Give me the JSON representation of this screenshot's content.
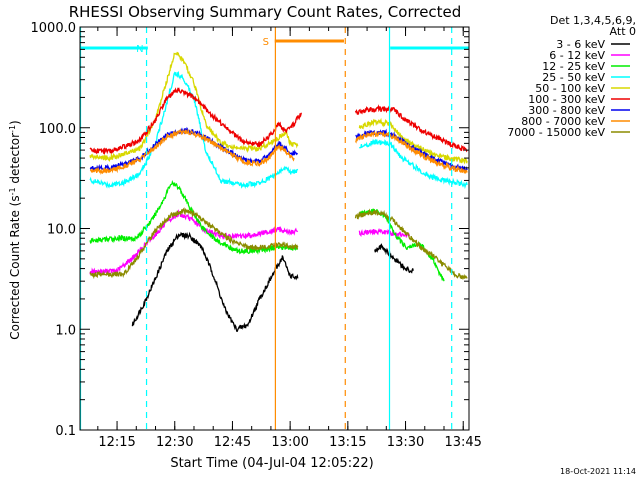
{
  "chart_data": {
    "type": "line",
    "title": "RHESSI Observing Summary Count Rates, Corrected",
    "xlabel": "Start Time (04-Jul-04 12:05:22)",
    "ylabel": "Corrected Count Rate (s⁻¹ detector⁻¹)",
    "ylabel_parts": {
      "base": "Corrected Count Rate (s",
      "exp1": "-1",
      "mid": " detector",
      "exp2": "-1",
      "end": ")"
    },
    "yscale": "log",
    "xlim": [
      "12:05:22",
      "13:46:30"
    ],
    "ylim": [
      0.1,
      1000
    ],
    "x_ticks": [
      "12:15",
      "12:30",
      "12:45",
      "13:00",
      "13:15",
      "13:30",
      "13:45"
    ],
    "y_ticks": [
      "0.1",
      "1.0",
      "10.0",
      "100.0",
      "1000.0"
    ],
    "legend": {
      "position": "right",
      "header": [
        "Det 1,3,4,5,6,9,",
        "Att 0"
      ]
    },
    "series": [
      {
        "name": "3 - 6 keV",
        "color": "#000000",
        "points": [
          [
            "12:19",
            1.1
          ],
          [
            "12:22",
            1.8
          ],
          [
            "12:25",
            3.2
          ],
          [
            "12:28",
            6.0
          ],
          [
            "12:31",
            8.7
          ],
          [
            "12:34",
            8.4
          ],
          [
            "12:37",
            6.5
          ],
          [
            "12:40",
            3.5
          ],
          [
            "12:43",
            1.6
          ],
          [
            "12:46",
            1.0
          ],
          [
            "12:49",
            1.1
          ],
          [
            "12:52",
            2.0
          ],
          [
            "12:55",
            3.2
          ],
          [
            "12:58",
            5.2
          ],
          [
            "13:00",
            3.4
          ],
          [
            "13:02",
            3.2
          ]
        ],
        "points_after": [
          [
            "13:22",
            6.0
          ],
          [
            "13:24",
            6.6
          ],
          [
            "13:27",
            5.0
          ],
          [
            "13:30",
            4.0
          ],
          [
            "13:32",
            3.8
          ]
        ]
      },
      {
        "name": "6 - 12 keV",
        "color": "#ff00ff",
        "points": [
          [
            "12:08",
            3.7
          ],
          [
            "12:15",
            3.8
          ],
          [
            "12:20",
            5.5
          ],
          [
            "12:24",
            8.0
          ],
          [
            "12:28",
            11.5
          ],
          [
            "12:31",
            14.0
          ],
          [
            "12:34",
            12.5
          ],
          [
            "12:38",
            9.6
          ],
          [
            "12:42",
            8.5
          ],
          [
            "12:46",
            8.3
          ],
          [
            "12:50",
            8.6
          ],
          [
            "12:54",
            9.2
          ],
          [
            "12:57",
            9.8
          ],
          [
            "13:00",
            9.2
          ],
          [
            "13:02",
            9.4
          ]
        ],
        "points_after": [
          [
            "13:18",
            9.0
          ],
          [
            "13:22",
            9.4
          ],
          [
            "13:26",
            9.0
          ],
          [
            "13:29",
            8.6
          ],
          [
            "13:31",
            8.4
          ]
        ]
      },
      {
        "name": "12 - 25 keV",
        "color": "#00ee00",
        "points": [
          [
            "12:08",
            7.5
          ],
          [
            "12:15",
            8.0
          ],
          [
            "12:20",
            8.0
          ],
          [
            "12:24",
            12.0
          ],
          [
            "12:27",
            19.0
          ],
          [
            "12:29",
            28.0
          ],
          [
            "12:31",
            26.0
          ],
          [
            "12:34",
            16.0
          ],
          [
            "12:37",
            10.5
          ],
          [
            "12:41",
            7.5
          ],
          [
            "12:46",
            6.0
          ],
          [
            "12:50",
            6.0
          ],
          [
            "12:54",
            6.2
          ],
          [
            "12:57",
            6.6
          ],
          [
            "13:00",
            6.5
          ],
          [
            "13:02",
            6.2
          ]
        ],
        "points_after": [
          [
            "13:18",
            14.0
          ],
          [
            "13:22",
            15.0
          ],
          [
            "13:25",
            13.0
          ],
          [
            "13:27",
            9.0
          ],
          [
            "13:30",
            6.5
          ],
          [
            "13:34",
            7.0
          ],
          [
            "13:37",
            5.0
          ],
          [
            "13:40",
            3.0
          ]
        ]
      },
      {
        "name": "25 - 50 keV",
        "color": "#00ffff",
        "points": [
          [
            "12:08",
            30.0
          ],
          [
            "12:13",
            27.0
          ],
          [
            "12:17",
            29.0
          ],
          [
            "12:21",
            35.0
          ],
          [
            "12:25",
            70.0
          ],
          [
            "12:28",
            180.0
          ],
          [
            "12:30",
            350.0
          ],
          [
            "12:32",
            320.0
          ],
          [
            "12:35",
            200.0
          ],
          [
            "12:38",
            60.0
          ],
          [
            "12:42",
            30.0
          ],
          [
            "12:47",
            27.0
          ],
          [
            "12:52",
            28.0
          ],
          [
            "12:56",
            34.0
          ],
          [
            "12:59",
            40.0
          ],
          [
            "13:00",
            36.0
          ],
          [
            "13:02",
            38.0
          ]
        ],
        "points_after": [
          [
            "13:18",
            65.0
          ],
          [
            "13:22",
            72.0
          ],
          [
            "13:26",
            70.0
          ],
          [
            "13:29",
            50.0
          ],
          [
            "13:32",
            42.0
          ],
          [
            "13:36",
            33.0
          ],
          [
            "13:40",
            30.0
          ],
          [
            "13:44",
            28.0
          ],
          [
            "13:46",
            27.0
          ]
        ]
      },
      {
        "name": "50 - 100 keV",
        "color": "#d8d800",
        "points": [
          [
            "12:08",
            52.0
          ],
          [
            "12:13",
            50.0
          ],
          [
            "12:17",
            55.0
          ],
          [
            "12:21",
            62.0
          ],
          [
            "12:25",
            120.0
          ],
          [
            "12:28",
            300.0
          ],
          [
            "12:30",
            560.0
          ],
          [
            "12:32",
            480.0
          ],
          [
            "12:35",
            280.0
          ],
          [
            "12:38",
            110.0
          ],
          [
            "12:42",
            70.0
          ],
          [
            "12:47",
            62.0
          ],
          [
            "12:52",
            62.0
          ],
          [
            "12:56",
            75.0
          ],
          [
            "12:59",
            90.0
          ],
          [
            "13:00",
            70.0
          ],
          [
            "13:02",
            66.0
          ]
        ],
        "points_after": [
          [
            "13:18",
            100.0
          ],
          [
            "13:22",
            115.0
          ],
          [
            "13:26",
            110.0
          ],
          [
            "13:29",
            80.0
          ],
          [
            "13:33",
            65.0
          ],
          [
            "13:37",
            55.0
          ],
          [
            "13:41",
            50.0
          ],
          [
            "13:46",
            47.0
          ]
        ]
      },
      {
        "name": "100 - 300 keV",
        "color": "#ee0000",
        "points": [
          [
            "12:08",
            60.0
          ],
          [
            "12:13",
            58.0
          ],
          [
            "12:17",
            65.0
          ],
          [
            "12:21",
            75.0
          ],
          [
            "12:25",
            120.0
          ],
          [
            "12:28",
            200.0
          ],
          [
            "12:31",
            240.0
          ],
          [
            "12:34",
            210.0
          ],
          [
            "12:37",
            170.0
          ],
          [
            "12:40",
            130.0
          ],
          [
            "12:44",
            95.0
          ],
          [
            "12:48",
            72.0
          ],
          [
            "12:52",
            68.0
          ],
          [
            "12:55",
            85.0
          ],
          [
            "12:57",
            110.0
          ],
          [
            "12:59",
            90.0
          ],
          [
            "13:01",
            110.0
          ],
          [
            "13:03",
            140.0
          ]
        ],
        "points_after": [
          [
            "13:17",
            140.0
          ],
          [
            "13:20",
            150.0
          ],
          [
            "13:24",
            155.0
          ],
          [
            "13:27",
            150.0
          ],
          [
            "13:30",
            120.0
          ],
          [
            "13:34",
            95.0
          ],
          [
            "13:38",
            80.0
          ],
          [
            "13:42",
            68.0
          ],
          [
            "13:46",
            60.0
          ]
        ]
      },
      {
        "name": "300 - 800 keV",
        "color": "#0000ee",
        "points": [
          [
            "12:08",
            40.0
          ],
          [
            "12:13",
            40.0
          ],
          [
            "12:17",
            44.0
          ],
          [
            "12:21",
            50.0
          ],
          [
            "12:25",
            68.0
          ],
          [
            "12:28",
            85.0
          ],
          [
            "12:32",
            95.0
          ],
          [
            "12:36",
            88.0
          ],
          [
            "12:40",
            72.0
          ],
          [
            "12:44",
            58.0
          ],
          [
            "12:48",
            48.0
          ],
          [
            "12:52",
            46.0
          ],
          [
            "12:55",
            55.0
          ],
          [
            "12:57",
            70.0
          ],
          [
            "12:59",
            62.0
          ],
          [
            "13:00",
            55.0
          ],
          [
            "13:02",
            55.0
          ]
        ],
        "points_after": [
          [
            "13:17",
            80.0
          ],
          [
            "13:20",
            88.0
          ],
          [
            "13:24",
            90.0
          ],
          [
            "13:27",
            85.0
          ],
          [
            "13:30",
            70.0
          ],
          [
            "13:34",
            57.0
          ],
          [
            "13:38",
            48.0
          ],
          [
            "13:42",
            42.0
          ],
          [
            "13:46",
            38.0
          ]
        ]
      },
      {
        "name": "800 - 7000 keV",
        "color": "#ff8c00",
        "points": [
          [
            "12:08",
            38.0
          ],
          [
            "12:13",
            37.0
          ],
          [
            "12:17",
            42.0
          ],
          [
            "12:21",
            48.0
          ],
          [
            "12:25",
            65.0
          ],
          [
            "12:28",
            82.0
          ],
          [
            "12:32",
            92.0
          ],
          [
            "12:36",
            85.0
          ],
          [
            "12:40",
            70.0
          ],
          [
            "12:44",
            56.0
          ],
          [
            "12:48",
            46.0
          ],
          [
            "12:52",
            44.0
          ],
          [
            "12:55",
            52.0
          ],
          [
            "12:57",
            66.0
          ],
          [
            "12:59",
            58.0
          ],
          [
            "13:00",
            52.0
          ],
          [
            "13:01",
            50.0
          ]
        ],
        "points_after": [
          [
            "13:17",
            76.0
          ],
          [
            "13:20",
            84.0
          ],
          [
            "13:24",
            87.0
          ],
          [
            "13:27",
            82.0
          ],
          [
            "13:30",
            67.0
          ],
          [
            "13:34",
            54.0
          ],
          [
            "13:38",
            45.0
          ],
          [
            "13:42",
            40.0
          ],
          [
            "13:46",
            36.0
          ]
        ]
      },
      {
        "name": "7000 - 15000 keV",
        "color": "#8b8b00",
        "points": [
          [
            "12:08",
            3.5
          ],
          [
            "12:13",
            3.5
          ],
          [
            "12:17",
            3.6
          ],
          [
            "12:20",
            5.0
          ],
          [
            "12:23",
            7.5
          ],
          [
            "12:26",
            10.5
          ],
          [
            "12:29",
            13.5
          ],
          [
            "12:32",
            15.0
          ],
          [
            "12:35",
            14.0
          ],
          [
            "12:38",
            11.5
          ],
          [
            "12:41",
            9.5
          ],
          [
            "12:45",
            7.5
          ],
          [
            "12:49",
            6.5
          ],
          [
            "12:53",
            6.5
          ],
          [
            "12:57",
            7.0
          ],
          [
            "13:00",
            6.5
          ],
          [
            "13:02",
            6.5
          ]
        ],
        "points_after": [
          [
            "13:17",
            13.0
          ],
          [
            "13:21",
            14.5
          ],
          [
            "13:24",
            14.0
          ],
          [
            "13:27",
            12.0
          ],
          [
            "13:30",
            9.0
          ],
          [
            "13:34",
            6.5
          ],
          [
            "13:38",
            5.0
          ],
          [
            "13:41",
            4.0
          ],
          [
            "13:43",
            3.5
          ],
          [
            "13:46",
            3.2
          ]
        ]
      }
    ],
    "annotations": [
      {
        "label": "N",
        "start": "12:05:22",
        "end": "12:23:00",
        "color": "#00ffff"
      },
      {
        "label": "",
        "start": "13:26:00",
        "end": "13:46:30",
        "color": "#00ffff"
      },
      {
        "label": "S",
        "start": "12:56:00",
        "end": "13:14:00",
        "color": "#ff8c00"
      }
    ],
    "vertical_lines": [
      {
        "time": "12:05:30",
        "color": "#00ffff",
        "style": "solid"
      },
      {
        "time": "12:22:40",
        "color": "#00ffff",
        "style": "dashed"
      },
      {
        "time": "12:56:10",
        "color": "#ff8c00",
        "style": "solid"
      },
      {
        "time": "13:14:20",
        "color": "#ff8c00",
        "style": "dashed"
      },
      {
        "time": "13:25:50",
        "color": "#00ffff",
        "style": "solid"
      },
      {
        "time": "13:42:00",
        "color": "#00ffff",
        "style": "dashed"
      }
    ],
    "stamp": "18-Oct-2021 11:14"
  }
}
